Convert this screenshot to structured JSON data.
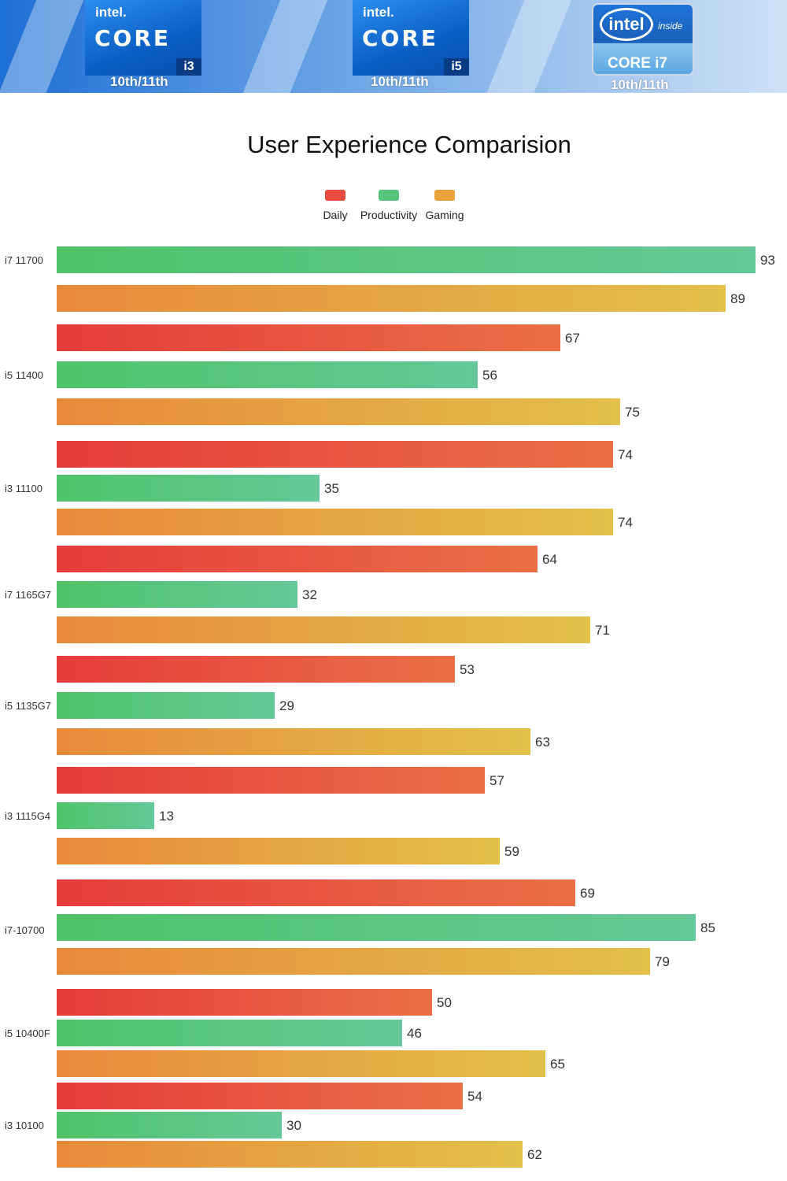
{
  "banner": {
    "badges": [
      {
        "brand": "intel.",
        "line": "CORE",
        "tier": "i3",
        "generation": "10th/11th"
      },
      {
        "brand": "intel.",
        "line": "CORE",
        "tier": "i5",
        "generation": "10th/11th"
      },
      {
        "brand": "intel",
        "inside": "inside",
        "line": "CORE i7",
        "generation": "10th/11th"
      }
    ]
  },
  "colors": {
    "daily": "#e84a3c",
    "productivity": "#55c77a",
    "gaming": "#e9a23c"
  },
  "chart_data": {
    "type": "bar",
    "orientation": "horizontal",
    "title": "User Experience Comparision",
    "legend": [
      "Daily",
      "Productivity",
      "Gaming"
    ],
    "legend_position": "top-center",
    "categories": [
      "i7 11700",
      "i5 11400",
      "i3 11100",
      "i7 1165G7",
      "i5 1135G7",
      "i3 1115G4",
      "i7-10700",
      "i5 10400F",
      "i3 10100"
    ],
    "series": [
      {
        "name": "Daily",
        "values": [
          null,
          67,
          74,
          64,
          53,
          57,
          69,
          50,
          54
        ]
      },
      {
        "name": "Productivity",
        "values": [
          93,
          56,
          35,
          32,
          29,
          13,
          85,
          46,
          30
        ]
      },
      {
        "name": "Gaming",
        "values": [
          89,
          75,
          74,
          71,
          63,
          59,
          79,
          65,
          62
        ]
      }
    ],
    "xlim": [
      0,
      93
    ],
    "grid": false
  }
}
